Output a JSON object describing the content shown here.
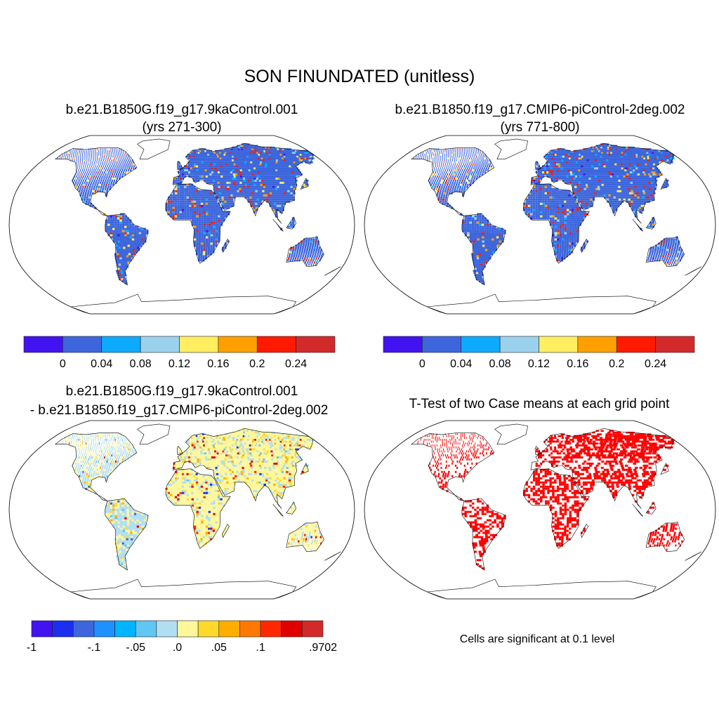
{
  "title": "SON FINUNDATED (unitless)",
  "chart_data": [
    {
      "type": "heatmap",
      "panel": "top-left",
      "title_lines": [
        "b.e21.B1850G.f19_g17.9kaControl.001",
        "(yrs 271-300)"
      ],
      "colorbar": {
        "colors": [
          "#4212f0",
          "#3d66dd",
          "#0daaff",
          "#9ad2ee",
          "#ffee60",
          "#ff9f00",
          "#ff1a00",
          "#d22a2a"
        ],
        "labels": [
          "0",
          "0.04",
          "0.08",
          "0.12",
          "0.16",
          "0.2",
          "0.24"
        ]
      }
    },
    {
      "type": "heatmap",
      "panel": "top-right",
      "title_lines": [
        "b.e21.B1850.f19_g17.CMIP6-piControl-2deg.002",
        "(yrs 771-800)"
      ],
      "colorbar": {
        "colors": [
          "#4212f0",
          "#3d66dd",
          "#0daaff",
          "#9ad2ee",
          "#ffee60",
          "#ff9f00",
          "#ff1a00",
          "#d22a2a"
        ],
        "labels": [
          "0",
          "0.04",
          "0.08",
          "0.12",
          "0.16",
          "0.2",
          "0.24"
        ]
      }
    },
    {
      "type": "heatmap",
      "panel": "bottom-left",
      "title_lines": [
        "b.e21.B1850G.f19_g17.9kaControl.001",
        "- b.e21.B1850.f19_g17.CMIP6-piControl-2deg.002"
      ],
      "colorbar": {
        "colors": [
          "#4212f0",
          "#1a2ff0",
          "#3d66dd",
          "#1e90ff",
          "#00b4ff",
          "#60c6f2",
          "#b2def2",
          "#fff79a",
          "#ffd92a",
          "#ffad00",
          "#ff7800",
          "#ff2800",
          "#e00000",
          "#d22a2a"
        ],
        "labels": [
          "-1",
          "-.1",
          "-.05",
          ".0",
          ".05",
          ".1",
          ".9702"
        ]
      }
    },
    {
      "type": "heatmap",
      "panel": "bottom-right",
      "title_lines": [
        "T-Test of two Case means at each grid point"
      ],
      "significance_color": "#ff0000",
      "note": "Cells are significant at 0.1 level"
    }
  ]
}
